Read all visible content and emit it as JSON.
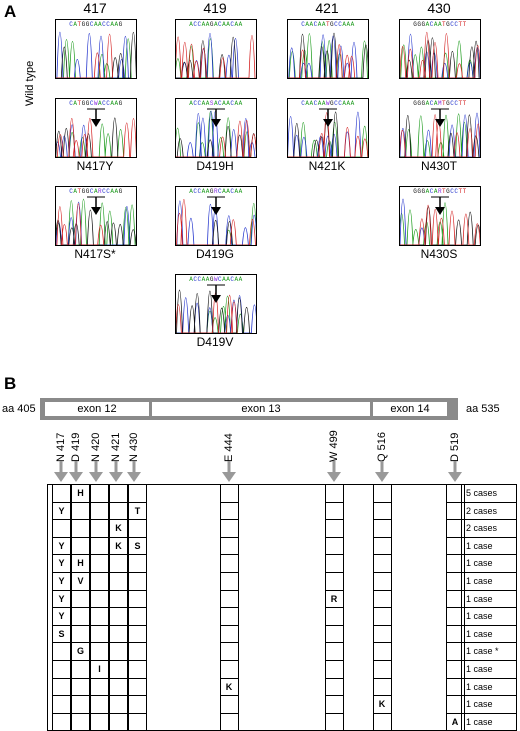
{
  "panel_a": {
    "letter": "A",
    "wild_type_label": "Wild type",
    "columns": [
      "417",
      "419",
      "421",
      "430"
    ],
    "wild_type_seqs": [
      "CATGGCAACCAAG",
      "ACCAAGACAACAA",
      "CAACAATGCCAAA",
      "GGGACAATGCCTT"
    ],
    "mutants": [
      {
        "col": 0,
        "row": 1,
        "label": "N417Y",
        "seq": "CATGGCWACCAAG"
      },
      {
        "col": 0,
        "row": 2,
        "label": "N417S*",
        "seq": "CATGGCARCCAAG"
      },
      {
        "col": 1,
        "row": 1,
        "label": "D419H",
        "seq": "ACCAASACAACAA"
      },
      {
        "col": 1,
        "row": 2,
        "label": "D419G",
        "seq": "ACCAAGRCAACAA"
      },
      {
        "col": 1,
        "row": 3,
        "label": "D419V",
        "seq": "ACCAAGWCAACAA"
      },
      {
        "col": 2,
        "row": 1,
        "label": "N421K",
        "seq": "CAACAAWGCCAAA"
      },
      {
        "col": 3,
        "row": 1,
        "label": "N430T",
        "seq": "GGGACAMTGCCTT"
      },
      {
        "col": 3,
        "row": 2,
        "label": "N430S",
        "seq": "GGGACARTGCCTT"
      }
    ]
  },
  "panel_b": {
    "letter": "B",
    "aa_start": "aa 405",
    "aa_end": "aa 535",
    "exons": [
      "exon 12",
      "exon 13",
      "exon 14"
    ],
    "sites": [
      {
        "aa": "N",
        "pos": "417"
      },
      {
        "aa": "D",
        "pos": "419"
      },
      {
        "aa": "N",
        "pos": "420"
      },
      {
        "aa": "N",
        "pos": "421"
      },
      {
        "aa": "N",
        "pos": "430"
      },
      {
        "aa": "E",
        "pos": "444"
      },
      {
        "aa": "W",
        "pos": "499"
      },
      {
        "aa": "Q",
        "pos": "516"
      },
      {
        "aa": "D",
        "pos": "519"
      }
    ],
    "rows": [
      {
        "cells": [
          "",
          "H",
          "",
          "",
          "",
          "",
          "",
          "",
          ""
        ],
        "cases": "5 cases"
      },
      {
        "cells": [
          "Y",
          "",
          "",
          "",
          "T",
          "",
          "",
          "",
          ""
        ],
        "cases": "2 cases"
      },
      {
        "cells": [
          "",
          "",
          "",
          "K",
          "",
          "",
          "",
          "",
          ""
        ],
        "cases": "2 cases"
      },
      {
        "cells": [
          "Y",
          "",
          "",
          "K",
          "S",
          "",
          "",
          "",
          ""
        ],
        "cases": "1 case"
      },
      {
        "cells": [
          "Y",
          "H",
          "",
          "",
          "",
          "",
          "",
          "",
          ""
        ],
        "cases": "1 case"
      },
      {
        "cells": [
          "Y",
          "V",
          "",
          "",
          "",
          "",
          "",
          "",
          ""
        ],
        "cases": "1 case"
      },
      {
        "cells": [
          "Y",
          "",
          "",
          "",
          "",
          "",
          "R",
          "",
          ""
        ],
        "cases": "1 case"
      },
      {
        "cells": [
          "Y",
          "",
          "",
          "",
          "",
          "",
          "",
          "",
          ""
        ],
        "cases": "1 case"
      },
      {
        "cells": [
          "S",
          "",
          "",
          "",
          "",
          "",
          "",
          "",
          ""
        ],
        "cases": "1 case"
      },
      {
        "cells": [
          "",
          "G",
          "",
          "",
          "",
          "",
          "",
          "",
          ""
        ],
        "cases": "1 case *"
      },
      {
        "cells": [
          "",
          "",
          "I",
          "",
          "",
          "",
          "",
          "",
          ""
        ],
        "cases": "1 case"
      },
      {
        "cells": [
          "",
          "",
          "",
          "",
          "",
          "K",
          "",
          "",
          ""
        ],
        "cases": "1 case"
      },
      {
        "cells": [
          "",
          "",
          "",
          "",
          "",
          "",
          "",
          "K",
          ""
        ],
        "cases": "1 case"
      },
      {
        "cells": [
          "",
          "",
          "",
          "",
          "",
          "",
          "",
          "",
          "A"
        ],
        "cases": "1 case"
      }
    ]
  }
}
